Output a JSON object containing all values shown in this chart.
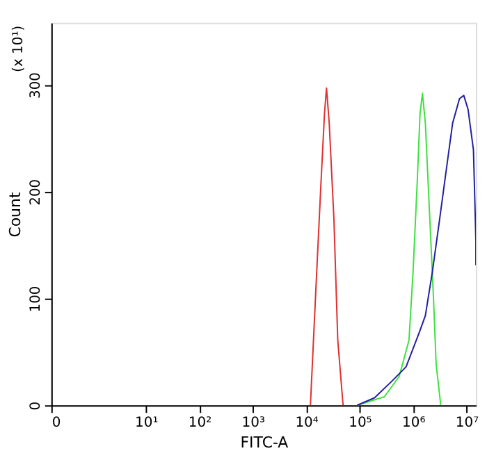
{
  "chart_data": {
    "type": "line",
    "xlabel": "FITC-A",
    "ylabel": "Count",
    "annotations": [
      "(x 10¹)"
    ],
    "log": "x",
    "grid": false,
    "marker": "none",
    "line_style": "solid",
    "xlim": [
      0.17,
      15000000
    ],
    "ylim": [
      0,
      358
    ],
    "xticks": [
      {
        "value": 0.17,
        "label": "0"
      },
      {
        "value": 10,
        "label": "10¹"
      },
      {
        "value": 100,
        "label": "10²"
      },
      {
        "value": 1000,
        "label": "10³"
      },
      {
        "value": 10000,
        "label": "10⁴"
      },
      {
        "value": 100000,
        "label": "10⁵"
      },
      {
        "value": 1000000,
        "label": "10⁶"
      },
      {
        "value": 10000000,
        "label": "10⁷"
      }
    ],
    "yticks": [
      0,
      100,
      200,
      300
    ],
    "series": [
      {
        "color": "#e03030",
        "x": [
          12000,
          15000,
          19000,
          22000,
          24000,
          27000,
          33000,
          39000,
          49000
        ],
        "values": [
          0,
          103,
          210,
          273,
          297,
          264,
          175,
          61,
          0
        ]
      },
      {
        "color": "#40e040",
        "x": [
          90000,
          290000,
          550000,
          840000,
          1000000,
          1200000,
          1350000,
          1500000,
          1700000,
          2000000,
          2400000,
          2700000,
          3300000
        ],
        "values": [
          0,
          8,
          27,
          61,
          125,
          210,
          273,
          292,
          264,
          188,
          103,
          39,
          0
        ]
      },
      {
        "color": "#2020a0",
        "x": [
          90000,
          190000,
          410000,
          740000,
          1350000,
          1700000,
          2300000,
          3100000,
          4100000,
          5500000,
          7400000,
          8900000,
          10700000,
          13500000,
          15000000,
          15000000
        ],
        "values": [
          0,
          7,
          23,
          36,
          70,
          84,
          125,
          172,
          217,
          264,
          287,
          290,
          277,
          239,
          154,
          131
        ]
      }
    ]
  }
}
